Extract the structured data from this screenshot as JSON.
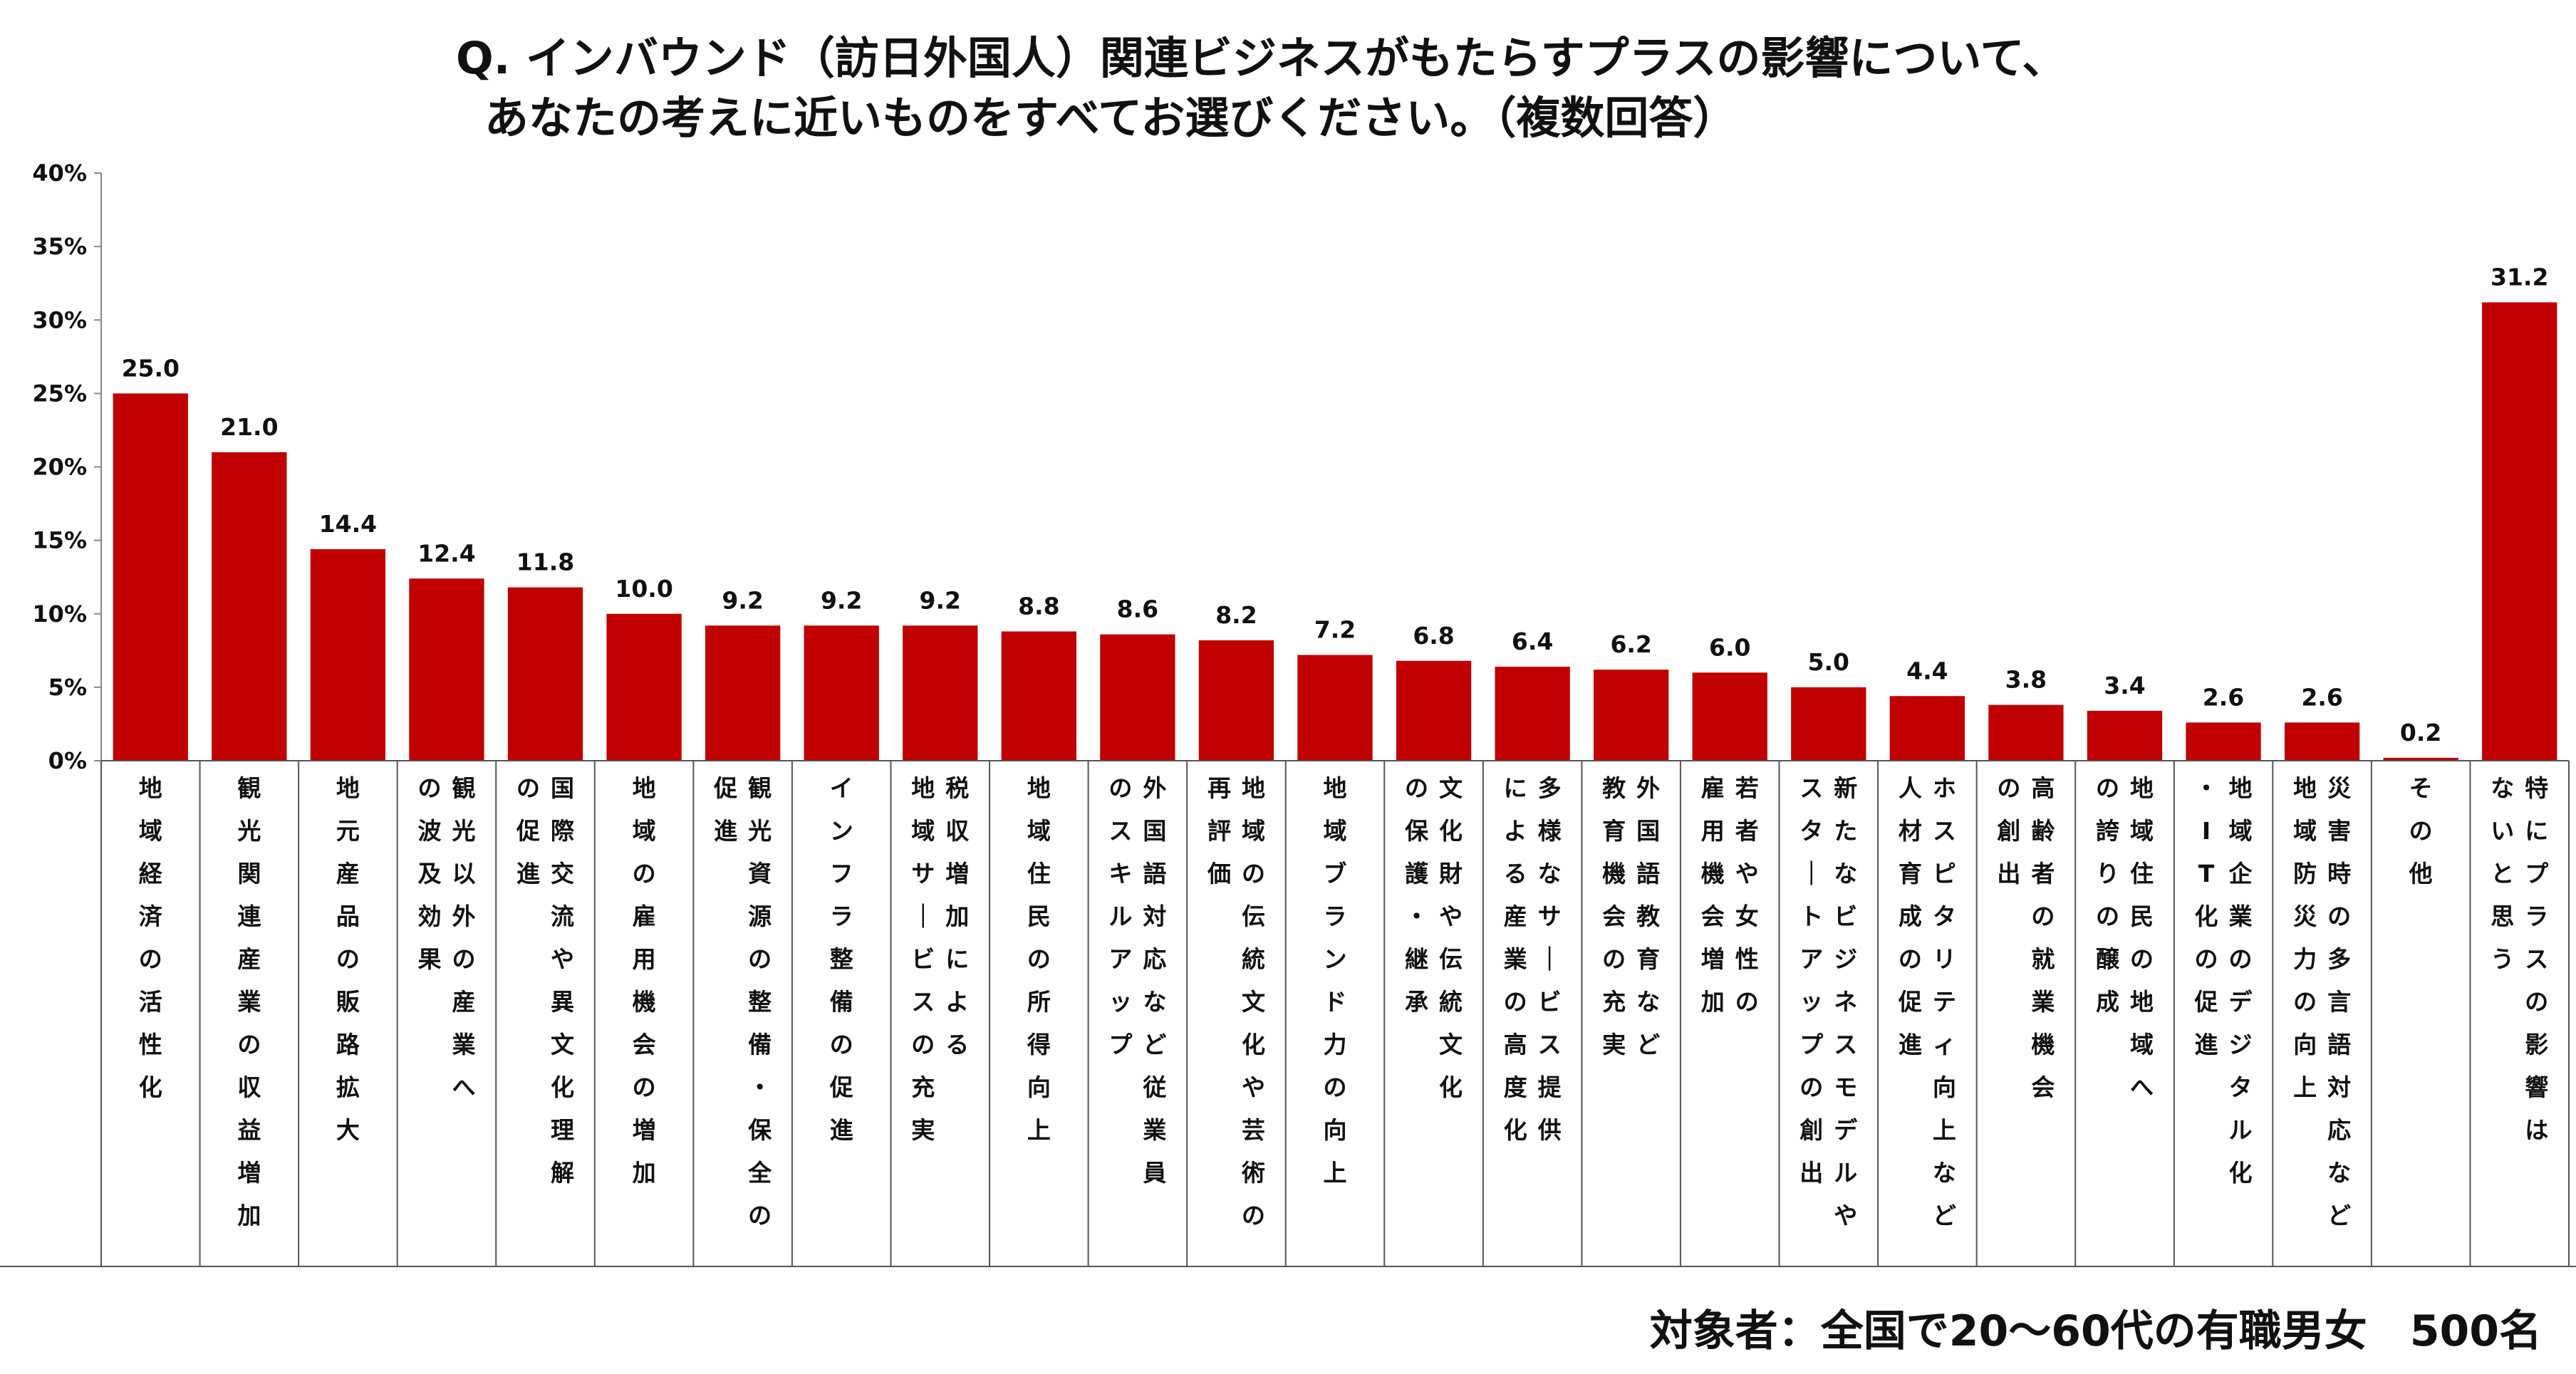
{
  "chart_data": {
    "type": "bar",
    "title_lines": [
      "Q. インバウンド（訪日外国人）関連ビジネスがもたらすプラスの影響について、",
      "あなたの考えに近いものをすべてお選びください。（複数回答）"
    ],
    "footer": "対象者：全国で20～60代の有職男女　500名",
    "ylim": [
      0,
      40
    ],
    "yticks": [
      "0%",
      "5%",
      "10%",
      "15%",
      "20%",
      "25%",
      "30%",
      "35%",
      "40%"
    ],
    "bar_color": "#c00000",
    "grid": false,
    "categories": [
      "地域経済の活性化",
      "観光関連産業の収益増加",
      "地元産品の販路拡大",
      "観光以外の産業への波及効果",
      "国際交流や異文化理解の促進",
      "地域の雇用機会の増加",
      "観光資源の整備・保全の促進",
      "インフラ整備の促進",
      "税収増加による地域サービスの充実",
      "地域住民の所得向上",
      "外国語対応など従業員のスキルアップ",
      "地域の伝統文化や芸術の再評価",
      "地域ブランド力の向上",
      "文化財や伝統文化の保護・継承",
      "多様なサービス提供による産業の高度化",
      "外国語教育など教育機会の充実",
      "若者や女性の雇用機会増加",
      "新たなビジネスモデルやスタートアップの創出",
      "ホスピタリティ向上など人材育成の促進",
      "高齢者の就業機会の創出",
      "地域住民の地域への誇りの醸成",
      "地域企業のデジタル化・IT化の促進",
      "災害時の多言語対応など地域防災力の向上",
      "その他",
      "特にプラスの影響はないと思う"
    ],
    "label_columns": [
      [
        "地域経済の活性化"
      ],
      [
        "観光関連産業の収益増加"
      ],
      [
        "地元産品の販路拡大"
      ],
      [
        "観光以外の産業へ",
        "の波及効果"
      ],
      [
        "国際交流や異文化理解",
        "の促進"
      ],
      [
        "地域の雇用機会の増加"
      ],
      [
        "観光資源の整備・保全の",
        "促進"
      ],
      [
        "インフラ整備の促進"
      ],
      [
        "税収増加による",
        "地域サービスの充実"
      ],
      [
        "地域住民の所得向上"
      ],
      [
        "外国語対応など従業員",
        "のスキルアップ"
      ],
      [
        "地域の伝統文化や芸術の",
        "再評価"
      ],
      [
        "地域ブランド力の向上"
      ],
      [
        "文化財や伝統文化",
        "の保護・継承"
      ],
      [
        "多様なサービス提供",
        "による産業の高度化"
      ],
      [
        "外国語教育など",
        "教育機会の充実"
      ],
      [
        "若者や女性の",
        "雇用機会増加"
      ],
      [
        "新たなビジネスモデルや",
        "スタートアップの創出"
      ],
      [
        "ホスピタリティ向上など",
        "人材育成の促進"
      ],
      [
        "高齢者の就業機会",
        "の創出"
      ],
      [
        "地域住民の地域へ",
        "の誇りの醸成"
      ],
      [
        "地域企業のデジタル化",
        "・IT化の促進"
      ],
      [
        "災害時の多言語対応など",
        "地域防災力の向上"
      ],
      [
        "その他"
      ],
      [
        "特にプラスの影響は",
        "ないと思う"
      ]
    ],
    "values": [
      25.0,
      21.0,
      14.4,
      12.4,
      11.8,
      10.0,
      9.2,
      9.2,
      9.2,
      8.8,
      8.6,
      8.2,
      7.2,
      6.8,
      6.4,
      6.2,
      6.0,
      5.0,
      4.4,
      3.8,
      3.4,
      2.6,
      2.6,
      0.2,
      31.2
    ]
  }
}
